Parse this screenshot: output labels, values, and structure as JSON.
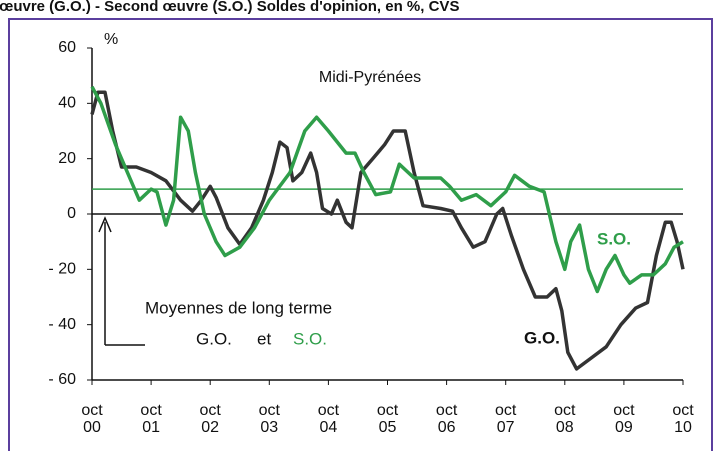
{
  "chart_data": {
    "type": "line",
    "subtitle": "Gros œuvre (G.O.) - Second œuvre (S.O.) Soldes d'opinion, en %, CVS",
    "title": "Midi-Pyrénées",
    "y_unit": "%",
    "xlim": [
      0,
      10
    ],
    "xticks": [
      {
        "value": 0,
        "label": "oct 00"
      },
      {
        "value": 1,
        "label": "oct 01"
      },
      {
        "value": 2,
        "label": "oct 02"
      },
      {
        "value": 3,
        "label": "oct 03"
      },
      {
        "value": 4,
        "label": "oct 04"
      },
      {
        "value": 5,
        "label": "oct 05"
      },
      {
        "value": 6,
        "label": "oct 06"
      },
      {
        "value": 7,
        "label": "oct 07"
      },
      {
        "value": 8,
        "label": "oct 08"
      },
      {
        "value": 9,
        "label": "oct 09"
      },
      {
        "value": 10,
        "label": "oct 10"
      }
    ],
    "ylim": [
      -60,
      60
    ],
    "yticks": [
      60,
      40,
      20,
      0,
      {
        "value": -20,
        "label": "- 20"
      },
      {
        "value": -40,
        "label": "- 40"
      },
      {
        "value": -60,
        "label": "- 60"
      }
    ],
    "series": [
      {
        "name": "G.O.",
        "color": "#333333",
        "x": [
          0,
          0.1,
          0.22,
          0.35,
          0.5,
          0.75,
          1.0,
          1.25,
          1.5,
          1.7,
          1.85,
          2.0,
          2.1,
          2.3,
          2.5,
          2.7,
          2.9,
          3.05,
          3.18,
          3.3,
          3.4,
          3.55,
          3.7,
          3.8,
          3.9,
          4.05,
          4.15,
          4.3,
          4.4,
          4.55,
          4.75,
          4.95,
          5.1,
          5.3,
          5.45,
          5.6,
          5.9,
          6.1,
          6.25,
          6.45,
          6.65,
          6.85,
          6.95,
          7.1,
          7.3,
          7.5,
          7.7,
          7.85,
          7.95,
          8.05,
          8.2,
          8.45,
          8.7,
          8.95,
          9.2,
          9.4,
          9.55,
          9.7,
          9.8,
          9.9,
          10.0
        ],
        "values": [
          36,
          44,
          44,
          30,
          17,
          17,
          15,
          12,
          5,
          1,
          5,
          10,
          6,
          -5,
          -11,
          -5,
          5,
          15,
          26,
          24,
          12,
          15,
          22,
          15,
          2,
          0,
          5,
          -3,
          -5,
          15,
          20,
          25,
          30,
          30,
          15,
          3,
          2,
          1,
          -5,
          -12,
          -10,
          0,
          2,
          -8,
          -20,
          -30,
          -30,
          -27,
          -35,
          -50,
          -56,
          -52,
          -48,
          -40,
          -34,
          -32,
          -15,
          -3,
          -3,
          -10,
          -20
        ]
      },
      {
        "name": "S.O.",
        "color": "#2f9e4a",
        "x": [
          0,
          0.15,
          0.4,
          0.8,
          1.0,
          1.1,
          1.25,
          1.38,
          1.5,
          1.63,
          1.75,
          1.9,
          2.1,
          2.25,
          2.5,
          2.75,
          3.0,
          3.35,
          3.6,
          3.8,
          4.0,
          4.3,
          4.45,
          4.6,
          4.8,
          5.05,
          5.2,
          5.45,
          5.9,
          6.05,
          6.25,
          6.5,
          6.75,
          7.0,
          7.15,
          7.4,
          7.65,
          7.85,
          8.0,
          8.1,
          8.25,
          8.4,
          8.55,
          8.7,
          8.85,
          9.0,
          9.1,
          9.3,
          9.5,
          9.7,
          9.85,
          10.0
        ],
        "values": [
          46,
          40,
          25,
          5,
          9,
          8,
          -4,
          5,
          35,
          30,
          15,
          0,
          -10,
          -15,
          -12,
          -5,
          5,
          15,
          30,
          35,
          30,
          22,
          22,
          15,
          7,
          8,
          18,
          13,
          13,
          10,
          5,
          7,
          3,
          8,
          14,
          10,
          8,
          -10,
          -20,
          -10,
          -4,
          -20,
          -28,
          -20,
          -15,
          -22,
          -25,
          -22,
          -22,
          -18,
          -12,
          -10
        ]
      }
    ],
    "zero_line": 0,
    "long_term_mean": {
      "value": 9,
      "color": "#2f9e4a"
    },
    "annotations": {
      "mean_title": "Moyennes de long terme",
      "mean_go": "G.O.",
      "mean_et": "et",
      "mean_so": "S.O.",
      "label_so": "S.O.",
      "label_go": "G.O."
    }
  }
}
